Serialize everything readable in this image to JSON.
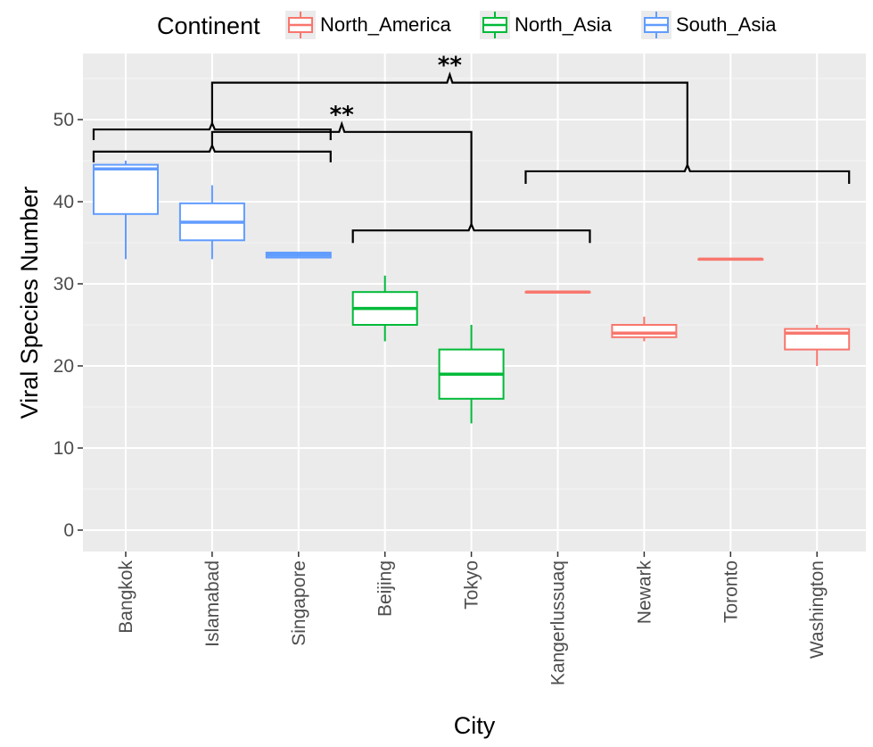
{
  "chart_data": {
    "type": "boxplot",
    "xlabel": "City",
    "ylabel": "Viral Species Number",
    "ylim": [
      -2.5,
      57
    ],
    "yticks": [
      0,
      10,
      20,
      30,
      40,
      50
    ],
    "grid": true,
    "legend": {
      "title": "Continent",
      "position": "top",
      "entries": [
        {
          "name": "North_America",
          "color": "#F8766D"
        },
        {
          "name": "North_Asia",
          "color": "#00BA38"
        },
        {
          "name": "South_Asia",
          "color": "#619CFF"
        }
      ]
    },
    "categories": [
      "Bangkok",
      "Islamabad",
      "Singapore",
      "Beijing",
      "Tokyo",
      "Kangerlussuaq",
      "Newark",
      "Toronto",
      "Washington"
    ],
    "boxes": [
      {
        "city": "Bangkok",
        "continent": "South_Asia",
        "min": 33,
        "q1": 38.5,
        "median": 44,
        "q3": 44.5,
        "max": 45
      },
      {
        "city": "Islamabad",
        "continent": "South_Asia",
        "min": 33,
        "q1": 35.3,
        "median": 37.5,
        "q3": 39.8,
        "max": 42
      },
      {
        "city": "Singapore",
        "continent": "South_Asia",
        "min": 33.2,
        "q1": 33.2,
        "median": 33.5,
        "q3": 33.8,
        "max": 33.8
      },
      {
        "city": "Beijing",
        "continent": "North_Asia",
        "min": 23,
        "q1": 25,
        "median": 27,
        "q3": 29,
        "max": 31
      },
      {
        "city": "Tokyo",
        "continent": "North_Asia",
        "min": 13,
        "q1": 16,
        "median": 19,
        "q3": 22,
        "max": 25
      },
      {
        "city": "Kangerlussuaq",
        "continent": "North_America",
        "min": 29,
        "q1": 29,
        "median": 29,
        "q3": 29,
        "max": 29
      },
      {
        "city": "Newark",
        "continent": "North_America",
        "min": 23,
        "q1": 23.5,
        "median": 24,
        "q3": 25,
        "max": 26
      },
      {
        "city": "Toronto",
        "continent": "North_America",
        "min": 33,
        "q1": 33,
        "median": 33,
        "q3": 33,
        "max": 33
      },
      {
        "city": "Washington",
        "continent": "North_America",
        "min": 20,
        "q1": 22,
        "median": 24,
        "q3": 24.5,
        "max": 25
      }
    ],
    "annotations": [
      {
        "type": "significance",
        "label": "**",
        "y": 48.5,
        "from_group": [
          "Bangkok",
          "Singapore"
        ],
        "to_group": [
          "Beijing",
          "Kangerlussuaq"
        ]
      },
      {
        "type": "significance",
        "label": "**",
        "y": 54.5,
        "from_group": [
          "Bangkok",
          "Singapore"
        ],
        "to_group": [
          "Kangerlussuaq",
          "Washington"
        ]
      }
    ]
  }
}
